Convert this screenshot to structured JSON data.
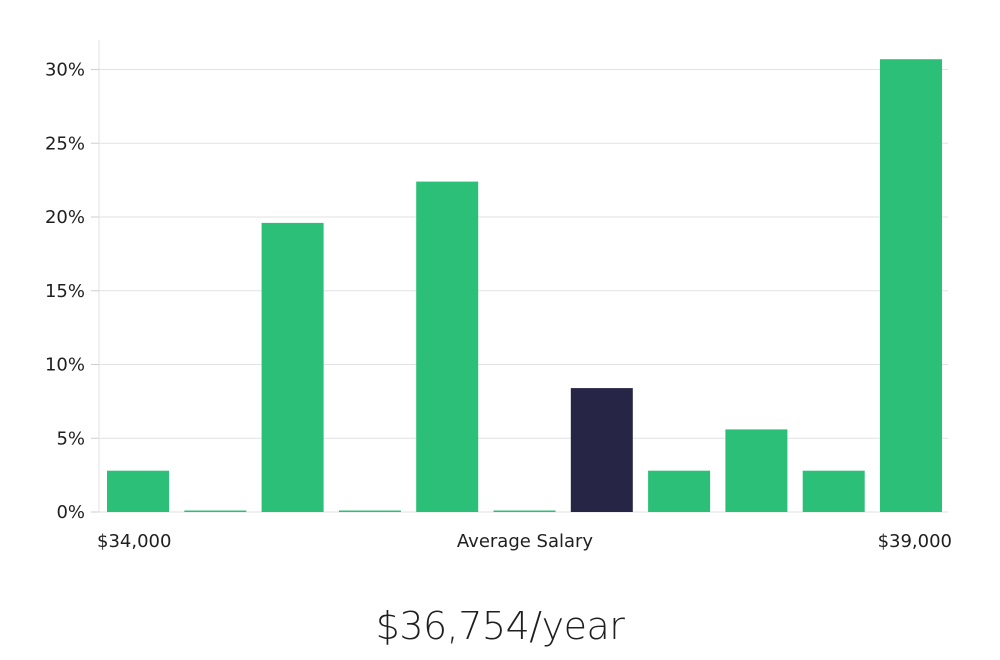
{
  "chart_data": {
    "type": "bar",
    "categories": [
      "1",
      "2",
      "3",
      "4",
      "5",
      "6",
      "7",
      "8",
      "9",
      "10",
      "11"
    ],
    "values": [
      2.8,
      0,
      19.6,
      0,
      22.4,
      0,
      8.4,
      2.8,
      5.6,
      2.8,
      30.7
    ],
    "highlight_index": 6,
    "ylim": [
      0,
      32
    ],
    "y_ticks": [
      0,
      5,
      10,
      15,
      20,
      25,
      30
    ],
    "y_tick_labels": [
      "0%",
      "5%",
      "10%",
      "15%",
      "20%",
      "25%",
      "30%"
    ],
    "x_min_label": "$34,000",
    "x_max_label": "$39,000",
    "xlabel": "Average Salary",
    "grid": true,
    "colors": {
      "bar": "#2bbf77",
      "highlight": "#262546",
      "grid": "#e2e2e2",
      "axis": "#e2e2e2"
    }
  },
  "salary_display": "$36,754/year"
}
